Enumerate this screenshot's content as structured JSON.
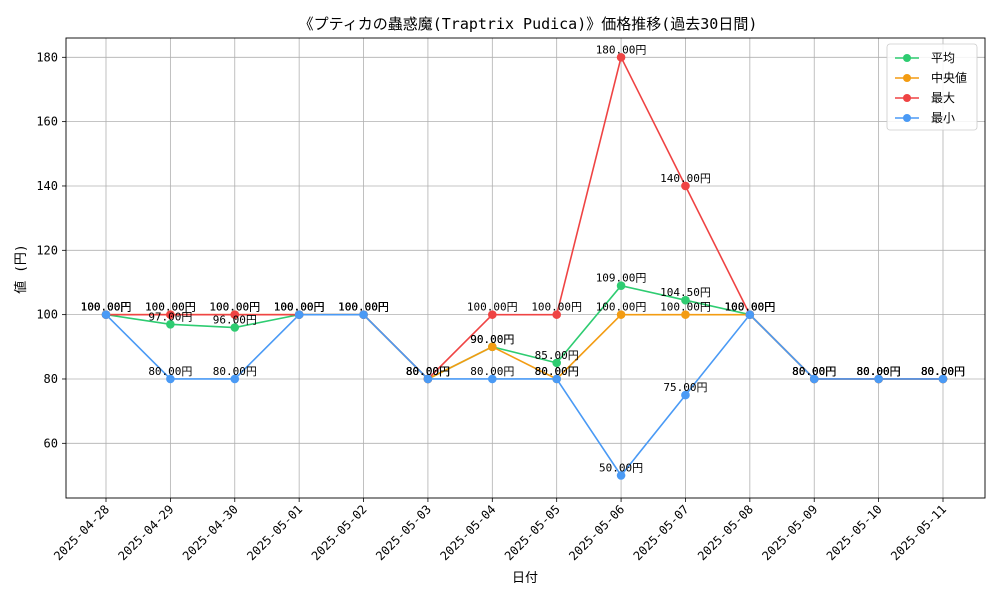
{
  "chart_data": {
    "type": "line",
    "title": "《プティカの蟲惑魔(Traptrix Pudica)》価格推移(過去30日間)",
    "xlabel": "日付",
    "ylabel": "値 (円)",
    "categories": [
      "2025-04-28",
      "2025-04-29",
      "2025-04-30",
      "2025-05-01",
      "2025-05-02",
      "2025-05-03",
      "2025-05-04",
      "2025-05-05",
      "2025-05-06",
      "2025-05-07",
      "2025-05-08",
      "2025-05-09",
      "2025-05-10",
      "2025-05-11"
    ],
    "ylim": [
      43,
      186
    ],
    "yticks": [
      60,
      80,
      100,
      120,
      140,
      160,
      180
    ],
    "grid": true,
    "legend_position": "top-right",
    "label_suffix": "円",
    "series": [
      {
        "name": "平均",
        "color": "#2ecc71",
        "values": [
          100,
          97,
          96,
          100,
          100,
          80,
          90,
          85,
          109,
          104.5,
          100,
          80,
          80,
          80
        ]
      },
      {
        "name": "中央値",
        "color": "#f39c12",
        "values": [
          100,
          100,
          100,
          100,
          100,
          80,
          90,
          80,
          100,
          100,
          100,
          80,
          80,
          80
        ]
      },
      {
        "name": "最大",
        "color": "#ef4444",
        "values": [
          100,
          100,
          100,
          100,
          100,
          80,
          100,
          100,
          180,
          140,
          100,
          80,
          80,
          80
        ]
      },
      {
        "name": "最小",
        "color": "#4a9af5",
        "values": [
          100,
          80,
          80,
          100,
          100,
          80,
          80,
          80,
          50,
          75,
          100,
          80,
          80,
          80
        ]
      }
    ]
  }
}
